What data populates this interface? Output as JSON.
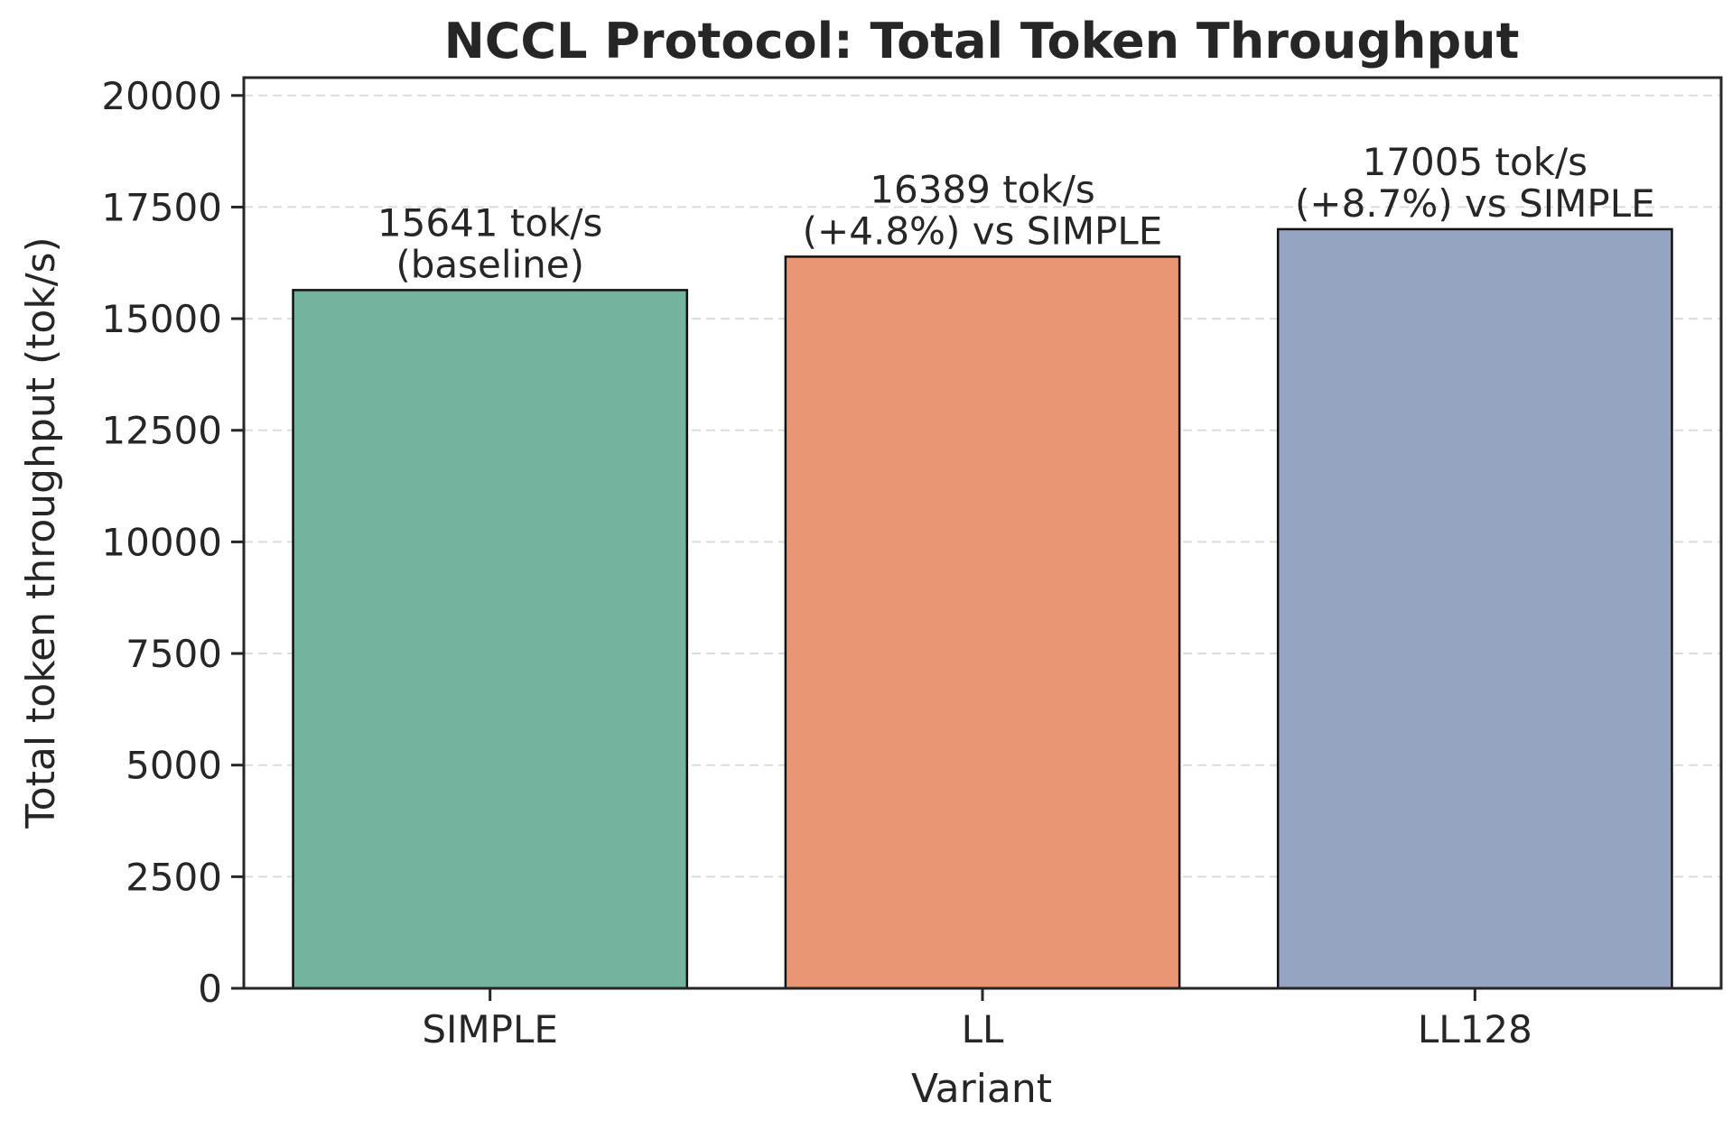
{
  "chart_data": {
    "type": "bar",
    "title": "NCCL Protocol: Total Token Throughput",
    "xlabel": "Variant",
    "ylabel": "Total token throughput (tok/s)",
    "categories": [
      "SIMPLE",
      "LL",
      "LL128"
    ],
    "values": [
      15641,
      16389,
      17005
    ],
    "bar_labels": [
      [
        "15641 tok/s",
        "(baseline)"
      ],
      [
        "16389 tok/s",
        "(+4.8%) vs SIMPLE"
      ],
      [
        "17005 tok/s",
        "(+8.7%) vs SIMPLE"
      ]
    ],
    "colors": [
      "#74b49f",
      "#e89674",
      "#95a4c1"
    ],
    "ylim": [
      0,
      20400
    ],
    "yticks": [
      0,
      2500,
      5000,
      7500,
      10000,
      12500,
      15000,
      17500,
      20000
    ],
    "grid": "y-dashed",
    "legend": "none"
  }
}
